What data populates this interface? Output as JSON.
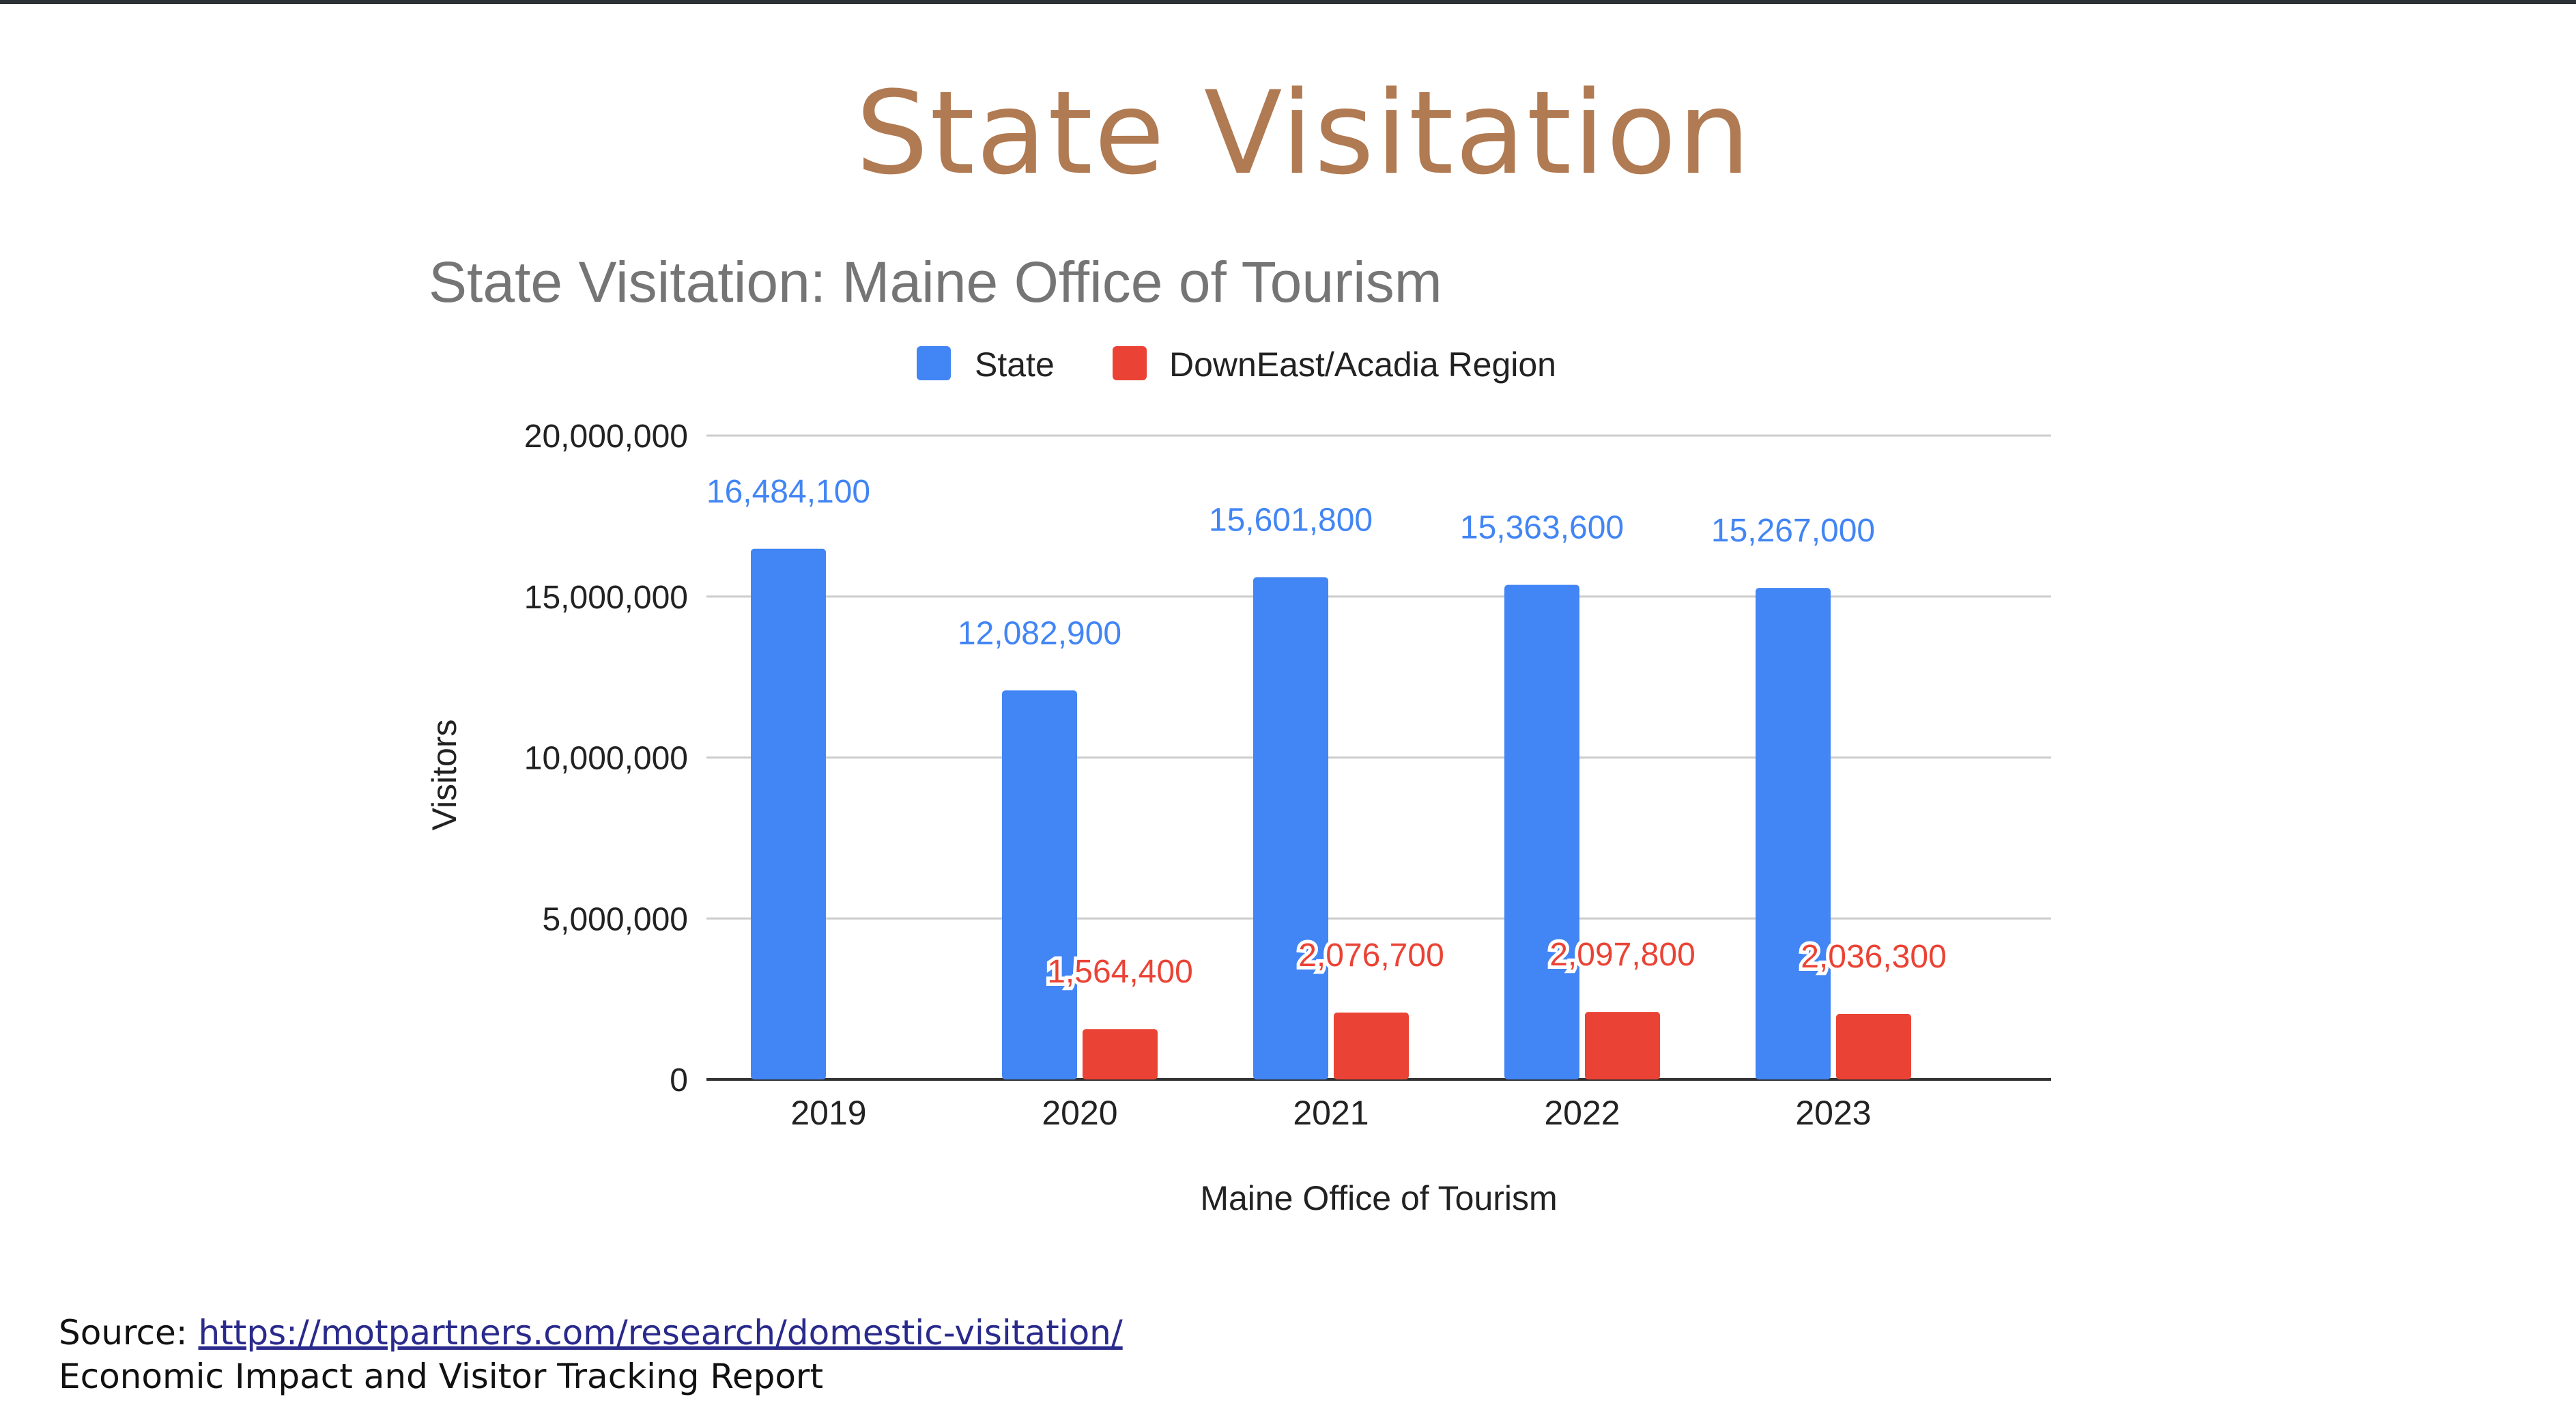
{
  "slide": {
    "title": "State Visitation"
  },
  "source": {
    "prefix": "Source: ",
    "link_text": "https://motpartners.com/research/domestic-visitation/",
    "report_name": "Economic Impact and Visitor Tracking Report"
  },
  "chart_data": {
    "type": "bar",
    "title": "State Visitation: Maine Office of Tourism",
    "xlabel": "Maine Office of Tourism",
    "ylabel": "Visitors",
    "ylim": [
      0,
      20000000
    ],
    "yticks": [
      0,
      5000000,
      10000000,
      15000000,
      20000000
    ],
    "ytick_labels": [
      "0",
      "5,000,000",
      "10,000,000",
      "15,000,000",
      "20,000,000"
    ],
    "categories": [
      "2019",
      "2020",
      "2021",
      "2022",
      "2023"
    ],
    "legend_position": "top",
    "grid": true,
    "series": [
      {
        "name": "State",
        "color": "#4285f4",
        "values": [
          16484100,
          12082900,
          15601800,
          15363600,
          15267000
        ],
        "labels": [
          "16,484,100",
          "12,082,900",
          "15,601,800",
          "15,363,600",
          "15,267,000"
        ]
      },
      {
        "name": "DownEast/Acadia Region",
        "color": "#ea4335",
        "values": [
          null,
          1564400,
          2076700,
          2097800,
          2036300
        ],
        "labels": [
          "",
          "1,564,400",
          "2,076,700",
          "2,097,800",
          "2,036,300"
        ]
      }
    ]
  }
}
